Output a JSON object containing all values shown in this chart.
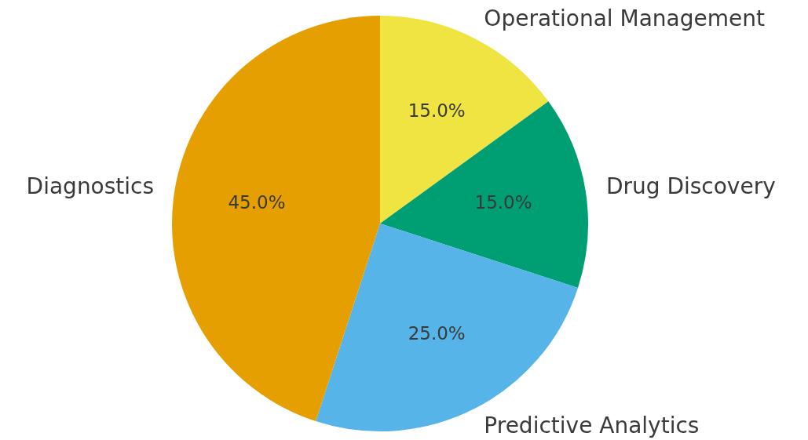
{
  "chart_data": {
    "type": "pie",
    "categories": [
      "Operational Management",
      "Drug Discovery",
      "Predictive Analytics",
      "Diagnostics"
    ],
    "values": [
      15,
      15,
      25,
      45
    ],
    "colors": [
      "#f0e442",
      "#009e73",
      "#56b4e9",
      "#e69f00"
    ],
    "value_labels": [
      "15.0%",
      "15.0%",
      "25.0%",
      "45.0%"
    ]
  }
}
